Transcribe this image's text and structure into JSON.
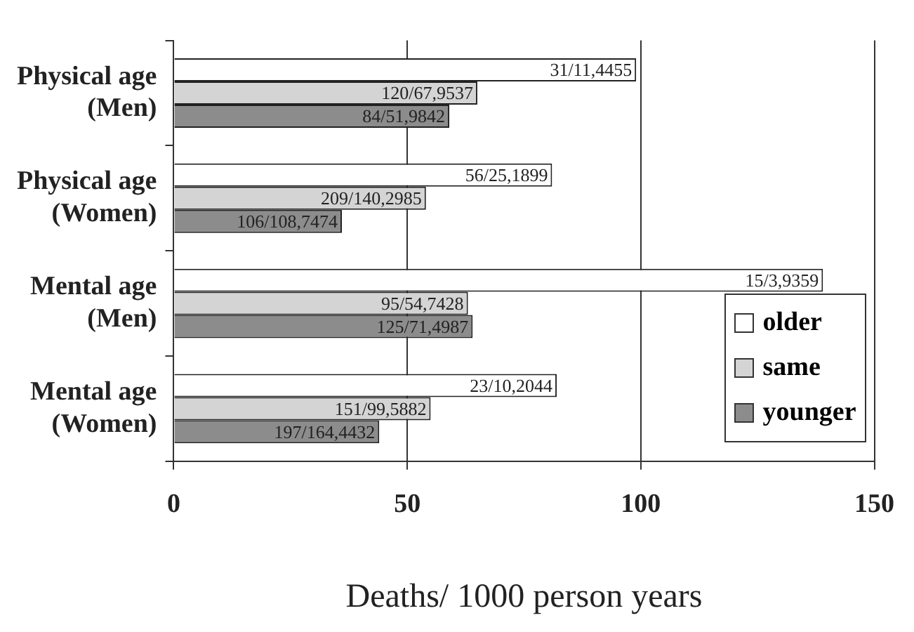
{
  "chart_data": {
    "type": "bar",
    "orientation": "horizontal",
    "xlabel": "Deaths/ 1000 person years",
    "categories": [
      "Physical age (Men)",
      "Physical age (Women)",
      "Mental age (Men)",
      "Mental age (Women)"
    ],
    "series": [
      {
        "name": "older",
        "color": "#ffffff",
        "values": [
          99,
          81,
          139,
          82
        ],
        "value_labels": [
          "31/11,4455",
          "56/25,1899",
          "15/3,9359",
          "23/10,2044"
        ]
      },
      {
        "name": "same",
        "color": "#d4d4d4",
        "values": [
          65,
          54,
          63,
          55
        ],
        "value_labels": [
          "120/67,9537",
          "209/140,2985",
          "95/54,7428",
          "151/99,5882"
        ]
      },
      {
        "name": "younger",
        "color": "#8c8c8c",
        "values": [
          59,
          36,
          64,
          44
        ],
        "value_labels": [
          "84/51,9842",
          "106/108,7474",
          "125/71,4987",
          "197/164,4432"
        ]
      }
    ],
    "xlim": [
      0,
      150
    ],
    "xticks": [
      0,
      50,
      100,
      150
    ],
    "grid": "x",
    "legend": "right"
  }
}
